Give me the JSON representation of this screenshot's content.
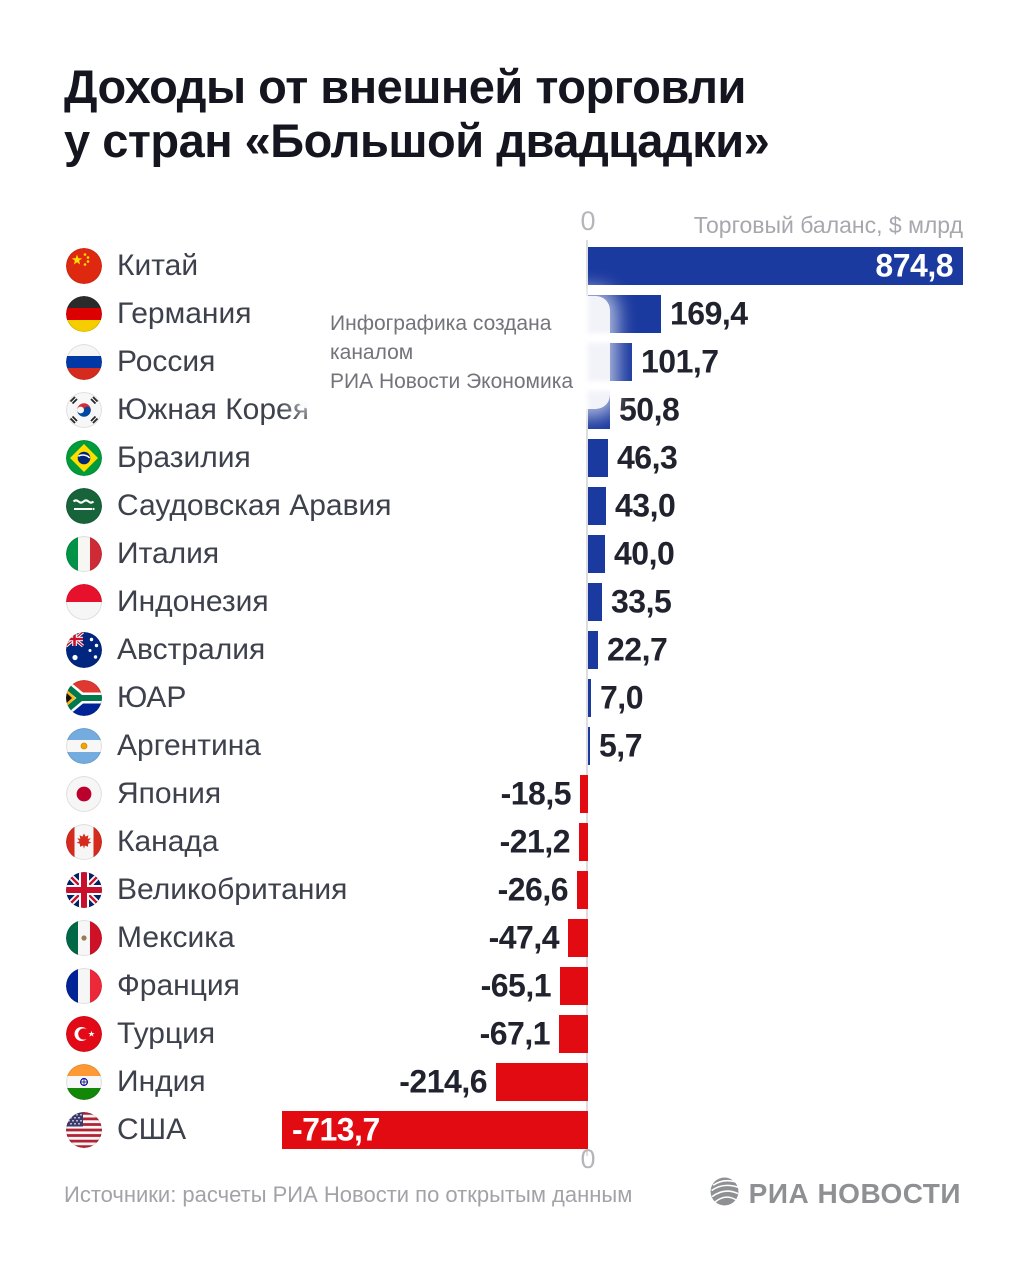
{
  "title": {
    "line1": "Доходы от внешней торговли",
    "line2": "у стран «Большой двадцадки»"
  },
  "axis": {
    "zero_top": "0",
    "zero_bottom": "0",
    "label": "Торговый баланс, $ млрд"
  },
  "watermark": {
    "line1": "Инфографика создана каналом",
    "line2": "РИА Новости Экономика"
  },
  "footer": {
    "source": "Источники: расчеты РИА Новости по открытым данным",
    "logo_text": "РИА НОВОСТИ"
  },
  "colors": {
    "positive_bar": "#1b3a9f",
    "negative_bar": "#e30b12",
    "value_text": "#20222e",
    "value_text_inside": "#ffffff",
    "title_text": "#15151f",
    "country_text": "#3d414c",
    "axis_text": "#a7a7ae"
  },
  "chart_data": {
    "type": "bar",
    "orientation": "horizontal",
    "title": "Доходы от внешней торговли у стран «Большой двадцадки»",
    "axis_label": "Торговый баланс, $ млрд",
    "unit": "$ млрд",
    "baseline": 0,
    "xlim": [
      -750,
      900
    ],
    "max_abs_value": 874.8,
    "grid": false,
    "legend": "none",
    "rows": [
      {
        "country": "Китай",
        "value": 874.8,
        "label": "874,8",
        "flag_icon": "flag-china-icon"
      },
      {
        "country": "Германия",
        "value": 169.4,
        "label": "169,4",
        "flag_icon": "flag-germany-icon"
      },
      {
        "country": "Россия",
        "value": 101.7,
        "label": "101,7",
        "flag_icon": "flag-russia-icon"
      },
      {
        "country": "Южная Корея",
        "value": 50.8,
        "label": "50,8",
        "flag_icon": "flag-south-korea-icon"
      },
      {
        "country": "Бразилия",
        "value": 46.3,
        "label": "46,3",
        "flag_icon": "flag-brazil-icon"
      },
      {
        "country": "Саудовская Аравия",
        "value": 43.0,
        "label": "43,0",
        "flag_icon": "flag-saudi-arabia-icon"
      },
      {
        "country": "Италия",
        "value": 40.0,
        "label": "40,0",
        "flag_icon": "flag-italy-icon"
      },
      {
        "country": "Индонезия",
        "value": 33.5,
        "label": "33,5",
        "flag_icon": "flag-indonesia-icon"
      },
      {
        "country": "Австралия",
        "value": 22.7,
        "label": "22,7",
        "flag_icon": "flag-australia-icon"
      },
      {
        "country": "ЮАР",
        "value": 7.0,
        "label": "7,0",
        "flag_icon": "flag-south-africa-icon"
      },
      {
        "country": "Аргентина",
        "value": 5.7,
        "label": "5,7",
        "flag_icon": "flag-argentina-icon"
      },
      {
        "country": "Япония",
        "value": -18.5,
        "label": "-18,5",
        "flag_icon": "flag-japan-icon"
      },
      {
        "country": "Канада",
        "value": -21.2,
        "label": "-21,2",
        "flag_icon": "flag-canada-icon"
      },
      {
        "country": "Великобритания",
        "value": -26.6,
        "label": "-26,6",
        "flag_icon": "flag-uk-icon"
      },
      {
        "country": "Мексика",
        "value": -47.4,
        "label": "-47,4",
        "flag_icon": "flag-mexico-icon"
      },
      {
        "country": "Франция",
        "value": -65.1,
        "label": "-65,1",
        "flag_icon": "flag-france-icon"
      },
      {
        "country": "Турция",
        "value": -67.1,
        "label": "-67,1",
        "flag_icon": "flag-turkey-icon"
      },
      {
        "country": "Индия",
        "value": -214.6,
        "label": "-214,6",
        "flag_icon": "flag-india-icon"
      },
      {
        "country": "США",
        "value": -713.7,
        "label": "-713,7",
        "flag_icon": "flag-usa-icon"
      }
    ]
  }
}
